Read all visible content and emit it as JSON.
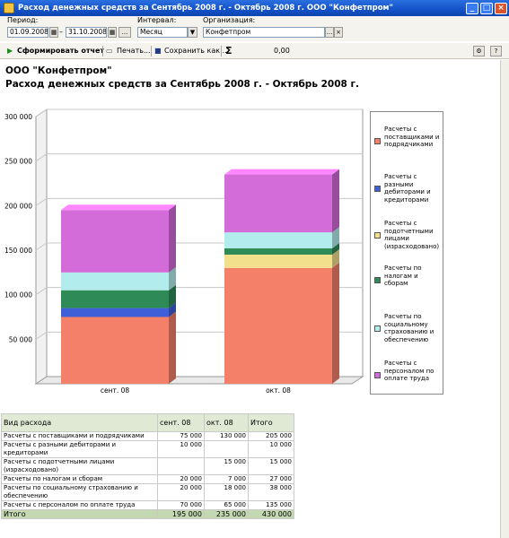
{
  "window": {
    "title": "Расход денежных средств за Сентябрь 2008 г. - Октябрь 2008 г. ООО \"Конфетпром\""
  },
  "params": {
    "period_label": "Период:",
    "date_from": "01.09.2008",
    "date_to": "31.10.2008",
    "interval_label": "Интервал:",
    "interval_value": "Месяц",
    "org_label": "Организация:",
    "org_value": "Конфетпром"
  },
  "toolbar": {
    "generate_label": "Сформировать отчет",
    "print_label": "Печать...",
    "save_label": "Сохранить как...",
    "sum_symbol": "Σ",
    "sum_value": "0,00"
  },
  "report": {
    "company": "ООО \"Конфетпром\"",
    "heading": "Расход денежных средств за Сентябрь 2008 г. - Октябрь 2008 г."
  },
  "chart_data": {
    "type": "bar",
    "stacked": true,
    "categories": [
      "сент. 08",
      "окт. 08"
    ],
    "ylim": [
      0,
      300000
    ],
    "yticks": [
      "50 000",
      "100 000",
      "150 000",
      "200 000",
      "250 000",
      "300 000"
    ],
    "grid": true,
    "legend_position": "right",
    "series": [
      {
        "name": "Расчеты с поставщиками и подрядчиками",
        "values": [
          75000,
          130000
        ],
        "color": "#f4806a"
      },
      {
        "name": "Расчеты с разными дебиторами и кредиторами",
        "values": [
          10000,
          0
        ],
        "color": "#3f5fd8"
      },
      {
        "name": "Расчеты с подотчетными лицами (израсходовано)",
        "values": [
          0,
          15000
        ],
        "color": "#f2e08c"
      },
      {
        "name": "Расчеты по налогам и сборам",
        "values": [
          20000,
          7000
        ],
        "color": "#2e8b57"
      },
      {
        "name": "Расчеты по социальному страхованию и обеспечению",
        "values": [
          20000,
          18000
        ],
        "color": "#b3ecec"
      },
      {
        "name": "Расчеты с персоналом по оплате труда",
        "values": [
          70000,
          65000
        ],
        "color": "#d36bd8"
      }
    ]
  },
  "table": {
    "headers": [
      "Вид расхода",
      "сент. 08",
      "окт. 08",
      "Итого"
    ],
    "rows": [
      [
        "Расчеты с поставщиками и подрядчиками",
        "75 000",
        "130 000",
        "205 000"
      ],
      [
        "Расчеты с разными дебиторами и кредиторами",
        "10 000",
        "",
        "10 000"
      ],
      [
        "Расчеты с подотчетными лицами (израсходовано)",
        "",
        "15 000",
        "15 000"
      ],
      [
        "Расчеты по налогам и сборам",
        "20 000",
        "7 000",
        "27 000"
      ],
      [
        "Расчеты по социальному страхованию и обеспечению",
        "20 000",
        "18 000",
        "38 000"
      ],
      [
        "Расчеты с персоналом по оплате труда",
        "70 000",
        "65 000",
        "135 000"
      ]
    ],
    "total": [
      "Итого",
      "195 000",
      "235 000",
      "430 000"
    ]
  }
}
